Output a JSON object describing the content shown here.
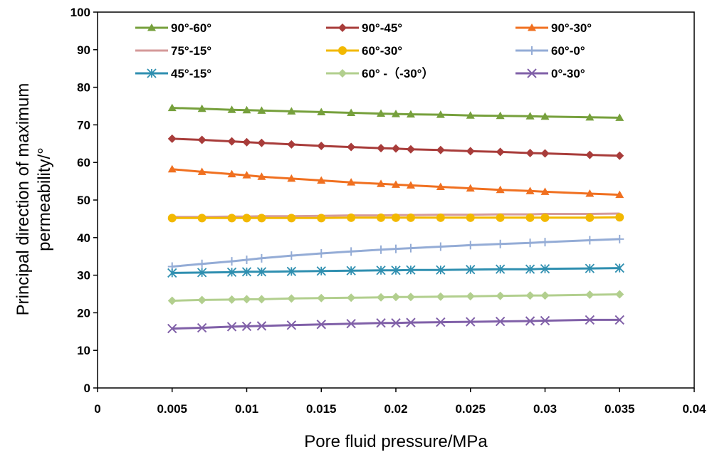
{
  "chart_data": {
    "type": "line",
    "title": "",
    "xlabel": "Pore fluid pressure/MPa",
    "ylabel_lines": [
      "Principal direction of maximum",
      "permeability/°"
    ],
    "xlim": [
      0,
      0.04
    ],
    "ylim": [
      0,
      100
    ],
    "xticks": [
      0,
      0.005,
      0.01,
      0.015,
      0.02,
      0.025,
      0.03,
      0.035,
      0.04
    ],
    "xtick_labels": [
      "0",
      "0.005",
      "0.01",
      "0.015",
      "0.02",
      "0.025",
      "0.03",
      "0.035",
      "0.04"
    ],
    "yticks": [
      0,
      10,
      20,
      30,
      40,
      50,
      60,
      70,
      80,
      90,
      100
    ],
    "ytick_labels": [
      "0",
      "10",
      "20",
      "30",
      "40",
      "50",
      "60",
      "70",
      "80",
      "90",
      "100"
    ],
    "grid": false,
    "legend_position": "top",
    "x": [
      0.005,
      0.007,
      0.009,
      0.01,
      0.011,
      0.013,
      0.015,
      0.017,
      0.019,
      0.02,
      0.021,
      0.023,
      0.025,
      0.027,
      0.029,
      0.03,
      0.033,
      0.035
    ],
    "series": [
      {
        "name": "90°-60°",
        "color": "#76A03C",
        "marker": "triangle",
        "values": [
          74.5,
          74.3,
          74.0,
          73.9,
          73.8,
          73.6,
          73.4,
          73.2,
          73.0,
          72.9,
          72.8,
          72.7,
          72.5,
          72.4,
          72.3,
          72.2,
          72.0,
          71.9
        ]
      },
      {
        "name": "90°-45°",
        "color": "#A83C3A",
        "marker": "diamond",
        "values": [
          66.3,
          66.0,
          65.6,
          65.4,
          65.2,
          64.8,
          64.4,
          64.1,
          63.8,
          63.7,
          63.5,
          63.3,
          63.0,
          62.8,
          62.5,
          62.4,
          62.0,
          61.8
        ]
      },
      {
        "name": "90°-30°",
        "color": "#F07020",
        "marker": "triangle",
        "values": [
          58.2,
          57.5,
          56.9,
          56.6,
          56.2,
          55.7,
          55.2,
          54.7,
          54.3,
          54.1,
          53.9,
          53.5,
          53.1,
          52.7,
          52.4,
          52.2,
          51.7,
          51.4
        ]
      },
      {
        "name": "75°-15°",
        "color": "#D59A9A",
        "marker": "none",
        "values": [
          45.5,
          45.5,
          45.6,
          45.6,
          45.7,
          45.7,
          45.8,
          45.9,
          45.9,
          46.0,
          46.0,
          46.1,
          46.1,
          46.2,
          46.2,
          46.3,
          46.3,
          46.4
        ]
      },
      {
        "name": "60°-30°",
        "color": "#F2B800",
        "marker": "circle",
        "values": [
          45.2,
          45.2,
          45.2,
          45.2,
          45.2,
          45.2,
          45.2,
          45.3,
          45.3,
          45.3,
          45.3,
          45.3,
          45.3,
          45.3,
          45.3,
          45.3,
          45.3,
          45.4
        ]
      },
      {
        "name": "60°-0°",
        "color": "#94ACD6",
        "marker": "plus",
        "values": [
          32.3,
          33.0,
          33.7,
          34.1,
          34.5,
          35.2,
          35.8,
          36.3,
          36.8,
          37.0,
          37.2,
          37.6,
          38.0,
          38.3,
          38.6,
          38.8,
          39.3,
          39.6
        ]
      },
      {
        "name": "45°-15°",
        "color": "#2F8FB0",
        "marker": "star",
        "values": [
          30.6,
          30.7,
          30.8,
          30.9,
          30.9,
          31.0,
          31.1,
          31.2,
          31.3,
          31.3,
          31.4,
          31.4,
          31.5,
          31.6,
          31.6,
          31.7,
          31.8,
          31.9
        ]
      },
      {
        "name": "60° -（-30°）",
        "color": "#B2CF8E",
        "marker": "diamond",
        "values": [
          23.2,
          23.4,
          23.5,
          23.6,
          23.6,
          23.8,
          23.9,
          24.0,
          24.1,
          24.2,
          24.2,
          24.3,
          24.4,
          24.5,
          24.6,
          24.6,
          24.8,
          24.9
        ]
      },
      {
        "name": "0°-30°",
        "color": "#8060A8",
        "marker": "x",
        "values": [
          15.8,
          16.0,
          16.3,
          16.4,
          16.5,
          16.7,
          16.9,
          17.1,
          17.3,
          17.3,
          17.4,
          17.5,
          17.6,
          17.7,
          17.8,
          17.9,
          18.1,
          18.1
        ]
      }
    ]
  }
}
